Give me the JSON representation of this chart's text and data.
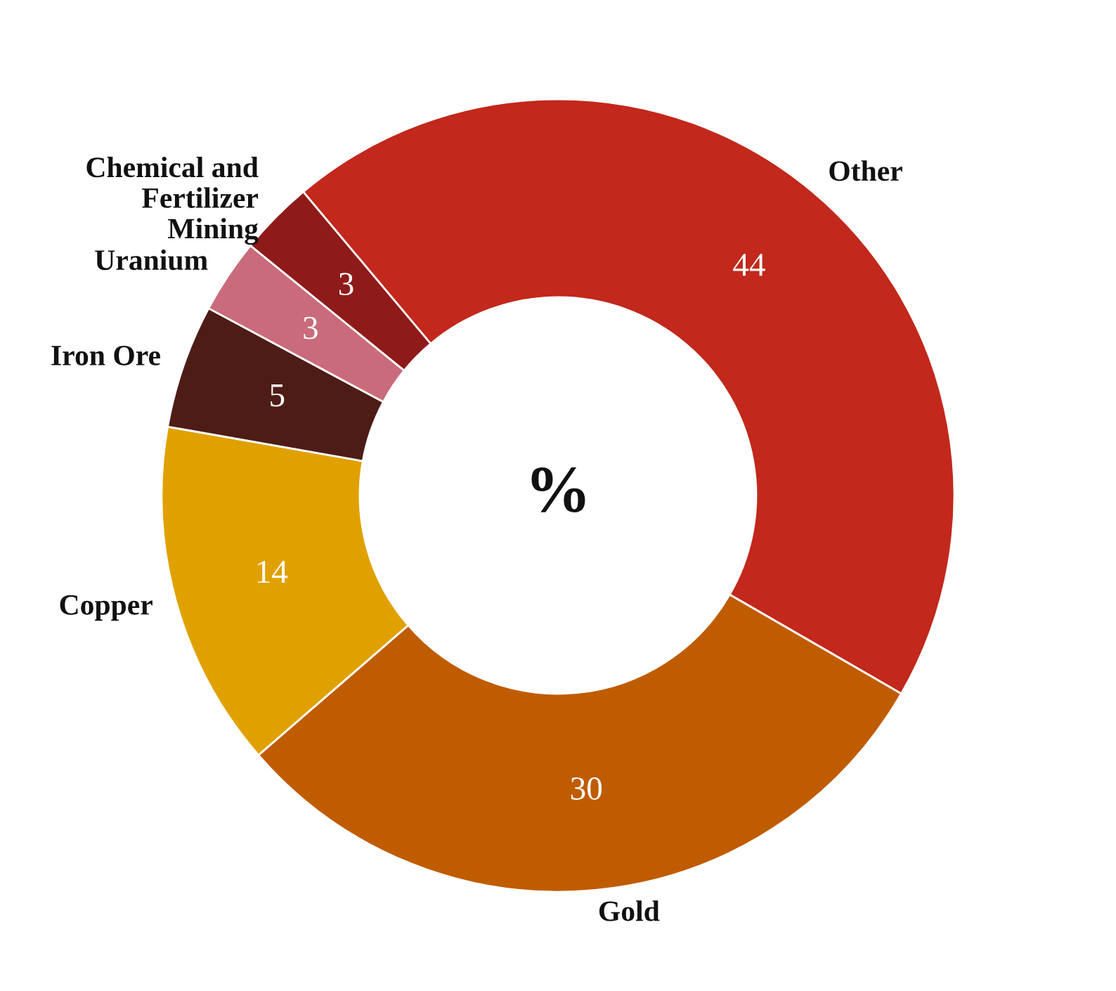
{
  "chart_data": {
    "type": "donut",
    "categories": [
      "Other",
      "Gold",
      "Copper",
      "Iron Ore",
      "Uranium",
      "Chemical and\nFertilizer\nMining"
    ],
    "values": [
      44,
      30,
      14,
      5,
      3,
      3
    ],
    "colors": [
      "#c2281b",
      "#c05c00",
      "#e0a100",
      "#4e1c17",
      "#c96b7a",
      "#8e1b1a"
    ],
    "data_labels": true,
    "annotations": [
      "%"
    ],
    "legend": false
  }
}
